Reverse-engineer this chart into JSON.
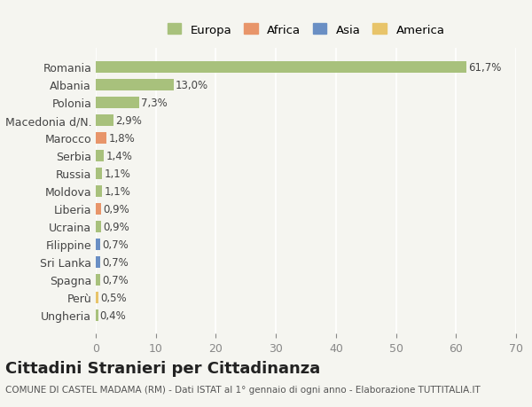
{
  "categories": [
    "Romania",
    "Albania",
    "Polonia",
    "Macedonia d/N.",
    "Marocco",
    "Serbia",
    "Russia",
    "Moldova",
    "Liberia",
    "Ucraina",
    "Filippine",
    "Sri Lanka",
    "Spagna",
    "Perù",
    "Ungheria"
  ],
  "values": [
    61.7,
    13.0,
    7.3,
    2.9,
    1.8,
    1.4,
    1.1,
    1.1,
    0.9,
    0.9,
    0.7,
    0.7,
    0.7,
    0.5,
    0.4
  ],
  "labels": [
    "61,7%",
    "13,0%",
    "7,3%",
    "2,9%",
    "1,8%",
    "1,4%",
    "1,1%",
    "1,1%",
    "0,9%",
    "0,9%",
    "0,7%",
    "0,7%",
    "0,7%",
    "0,5%",
    "0,4%"
  ],
  "continents": [
    "Europa",
    "Europa",
    "Europa",
    "Europa",
    "Africa",
    "Europa",
    "Europa",
    "Europa",
    "Africa",
    "Europa",
    "Asia",
    "Asia",
    "Europa",
    "America",
    "Europa"
  ],
  "colors": {
    "Europa": "#a8c17c",
    "Africa": "#e8956a",
    "Asia": "#6a8fc4",
    "America": "#e8c46a"
  },
  "legend_colors": {
    "Europa": "#a8c17c",
    "Africa": "#e8956a",
    "Asia": "#6a8fc4",
    "America": "#e8c46a"
  },
  "xlim": [
    0,
    70
  ],
  "xticks": [
    0,
    10,
    20,
    30,
    40,
    50,
    60,
    70
  ],
  "background_color": "#f5f5f0",
  "grid_color": "#ffffff",
  "title": "Cittadini Stranieri per Cittadinanza",
  "subtitle": "COMUNE DI CASTEL MADAMA (RM) - Dati ISTAT al 1° gennaio di ogni anno - Elaborazione TUTTITALIA.IT",
  "bar_height": 0.65,
  "label_fontsize": 8.5,
  "title_fontsize": 13,
  "subtitle_fontsize": 7.5
}
